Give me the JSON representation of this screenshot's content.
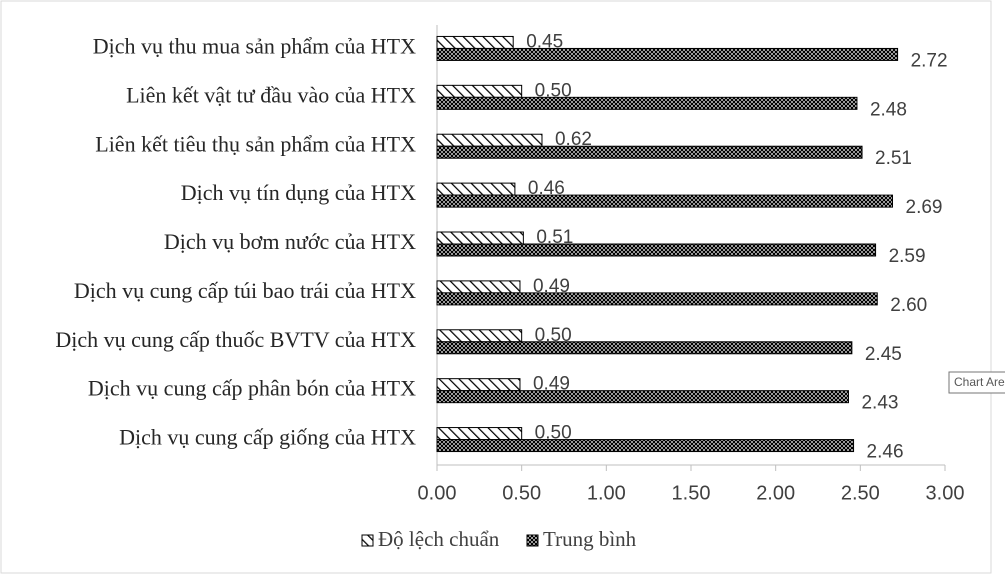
{
  "chart_data": {
    "type": "bar",
    "orientation": "horizontal",
    "categories": [
      "Dịch vụ thu mua sản phẩm của HTX",
      "Liên kết vật tư đầu vào của  HTX",
      "Liên kết tiêu thụ sản phẩm của  HTX",
      "Dịch vụ tín dụng của  HTX",
      "Dịch vụ bơm nước của  HTX",
      "Dịch vụ cung cấp túi bao trái của  HTX",
      "Dịch vụ cung cấp thuốc BVTV  của  HTX",
      "Dịch vụ cung cấp phân bón của  HTX",
      "Dịch vụ cung cấp giống  của  HTX"
    ],
    "series": [
      {
        "name": "Độ lệch chuẩn",
        "color": "#000000",
        "pattern": "diagonal",
        "values": [
          0.45,
          0.5,
          0.62,
          0.46,
          0.51,
          0.49,
          0.5,
          0.49,
          0.5
        ],
        "value_labels": [
          "0.45",
          "0.50",
          "0.62",
          "0.46",
          "0.51",
          "0.49",
          "0.50",
          "0.49",
          "0.50"
        ]
      },
      {
        "name": "Trung bình",
        "color": "#000000",
        "pattern": "crosshatch",
        "values": [
          2.72,
          2.48,
          2.51,
          2.69,
          2.59,
          2.6,
          2.45,
          2.43,
          2.46
        ],
        "value_labels": [
          "2.72",
          "2.48",
          "2.51",
          "2.69",
          "2.59",
          "2.60",
          "2.45",
          "2.43",
          "2.46"
        ]
      }
    ],
    "xlim": [
      0,
      3
    ],
    "xticks": [
      {
        "value": 0,
        "label": "0.00"
      },
      {
        "value": 0.5,
        "label": "0.50"
      },
      {
        "value": 1,
        "label": "1.00"
      },
      {
        "value": 1.5,
        "label": "1.50"
      },
      {
        "value": 2,
        "label": "2.00"
      },
      {
        "value": 2.5,
        "label": "2.50"
      },
      {
        "value": 3,
        "label": "3.00"
      }
    ],
    "legend": "bottom"
  },
  "tooltip": "Chart Are"
}
